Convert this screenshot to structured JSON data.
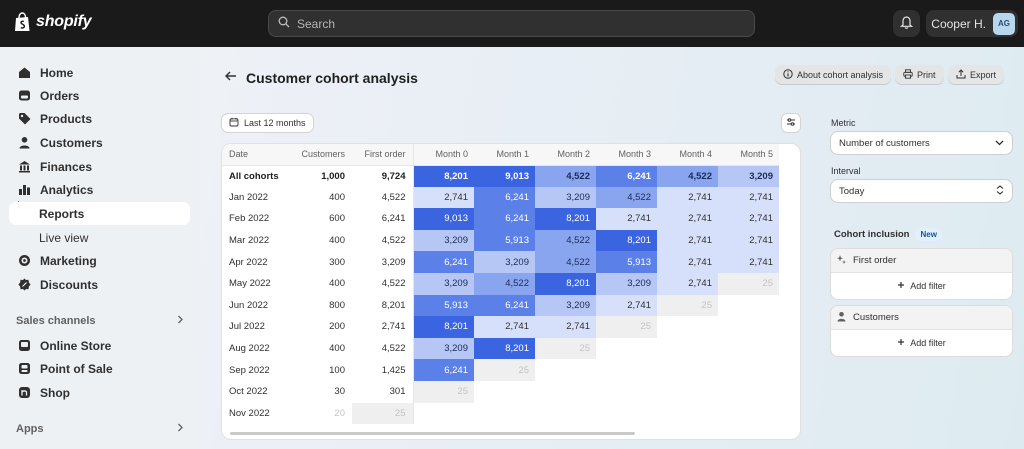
{
  "topbar": {
    "brand": "shopify",
    "search_placeholder": "Search",
    "user_name": "Cooper H.",
    "user_initials": "AG"
  },
  "sidebar": {
    "items": [
      {
        "label": "Home",
        "icon": "home-icon"
      },
      {
        "label": "Orders",
        "icon": "orders-icon"
      },
      {
        "label": "Products",
        "icon": "tag-icon"
      },
      {
        "label": "Customers",
        "icon": "person-icon"
      },
      {
        "label": "Finances",
        "icon": "bank-icon"
      },
      {
        "label": "Analytics",
        "icon": "bar-chart-icon"
      },
      {
        "label": "Reports",
        "icon": "",
        "sub": true,
        "active": true
      },
      {
        "label": "Live view",
        "icon": "",
        "sub": true
      },
      {
        "label": "Marketing",
        "icon": "target-icon"
      },
      {
        "label": "Discounts",
        "icon": "discount-icon"
      }
    ],
    "sales_channels_label": "Sales channels",
    "channels": [
      {
        "label": "Online Store",
        "icon": "store-icon"
      },
      {
        "label": "Point of Sale",
        "icon": "pos-icon"
      },
      {
        "label": "Shop",
        "icon": "shop-icon"
      }
    ],
    "apps_label": "Apps"
  },
  "header": {
    "title": "Customer cohort analysis",
    "about_label": "About cohort analysis",
    "print_label": "Print",
    "export_label": "Export"
  },
  "toolbar": {
    "date_range": "Last 12 months"
  },
  "table": {
    "columns": [
      "Date",
      "Customers",
      "First order",
      "Month 0",
      "Month 1",
      "Month 2",
      "Month 3",
      "Month 4",
      "Month 5"
    ],
    "rows": [
      {
        "date": "All cohorts",
        "customers": "1,000",
        "first_order": "9,724",
        "months": [
          "8,201",
          "9,013",
          "4,522",
          "6,241",
          "4,522",
          "3,209"
        ]
      },
      {
        "date": "Jan 2022",
        "customers": "400",
        "first_order": "4,522",
        "months": [
          "2,741",
          "6,241",
          "3,209",
          "4,522",
          "2,741",
          "2,741"
        ]
      },
      {
        "date": "Feb 2022",
        "customers": "600",
        "first_order": "6,241",
        "months": [
          "9,013",
          "6,241",
          "8,201",
          "2,741",
          "2,741",
          "2,741"
        ]
      },
      {
        "date": "Mar 2022",
        "customers": "400",
        "first_order": "4,522",
        "months": [
          "3,209",
          "5,913",
          "4,522",
          "8,201",
          "2,741",
          "2,741"
        ]
      },
      {
        "date": "Apr 2022",
        "customers": "300",
        "first_order": "3,209",
        "months": [
          "6,241",
          "3,209",
          "4,522",
          "5,913",
          "2,741",
          "2,741"
        ]
      },
      {
        "date": "May 2022",
        "customers": "400",
        "first_order": "4,522",
        "months": [
          "3,209",
          "4,522",
          "8,201",
          "3,209",
          "2,741",
          "25"
        ]
      },
      {
        "date": "Jun 2022",
        "customers": "800",
        "first_order": "8,201",
        "months": [
          "5,913",
          "6,241",
          "3,209",
          "2,741",
          "25"
        ]
      },
      {
        "date": "Jul 2022",
        "customers": "200",
        "first_order": "2,741",
        "months": [
          "8,201",
          "2,741",
          "2,741",
          "25"
        ]
      },
      {
        "date": "Aug 2022",
        "customers": "400",
        "first_order": "4,522",
        "months": [
          "3,209",
          "8,201",
          "25"
        ]
      },
      {
        "date": "Sep 2022",
        "customers": "100",
        "first_order": "1,425",
        "months": [
          "6,241",
          "25"
        ]
      },
      {
        "date": "Oct 2022",
        "customers": "30",
        "first_order": "301",
        "months": [
          "25"
        ]
      },
      {
        "date": "Nov 2022",
        "customers": "20",
        "first_order": "25",
        "months": []
      }
    ]
  },
  "panel": {
    "metric_label": "Metric",
    "metric_value": "Number of customers",
    "interval_label": "Interval",
    "interval_value": "Today",
    "cohort_inclusion_label": "Cohort inclusion",
    "new_badge": "New",
    "filters": [
      {
        "title": "First order",
        "icon": "sparkle-icon",
        "add_label": "Add filter"
      },
      {
        "title": "Customers",
        "icon": "person-icon",
        "add_label": "Add filter"
      }
    ]
  },
  "colors": {
    "heat_max": "#3a64e0",
    "heat_high": "#5b80e8",
    "heat_mid": "#8aa5ef",
    "heat_low": "#b7c7f5",
    "heat_min": "#d7e0fa",
    "empty": "#efefef"
  }
}
